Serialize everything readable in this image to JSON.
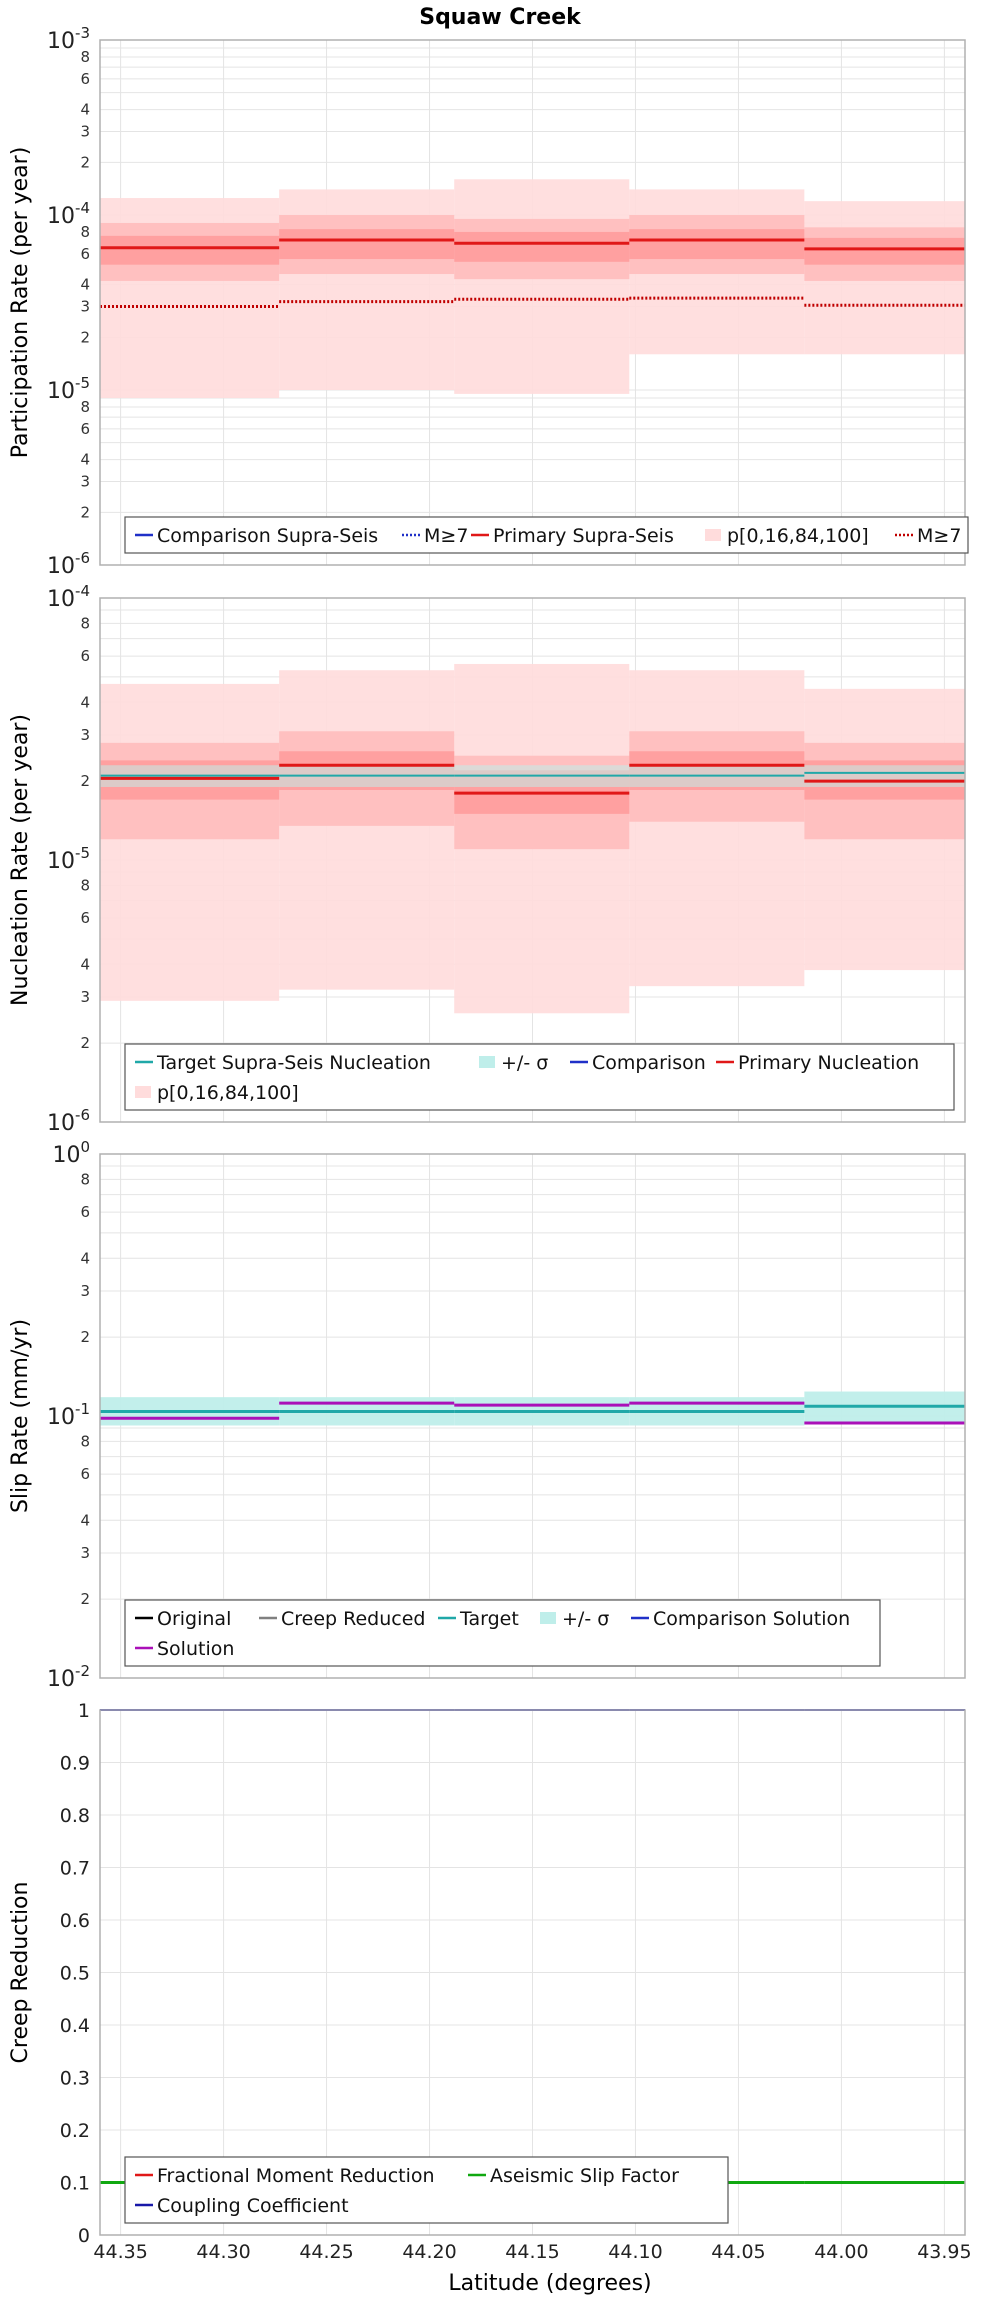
{
  "title": "Squaw Creek",
  "xlabel": "Latitude (degrees)",
  "x_ticks": [
    "44.35",
    "44.30",
    "44.25",
    "44.20",
    "44.15",
    "44.10",
    "44.05",
    "44.00",
    "43.95"
  ],
  "colors": {
    "comparison": "#2030c8",
    "primary": "#e01818",
    "band_outer": "#ffdcdc",
    "band_inner": "#ffbcbc",
    "band_core": "#ff9c9c",
    "target": "#20a8a8",
    "sigma": "#bfeeea",
    "solution": "#aa10b8",
    "original": "#000000",
    "creep": "#808080",
    "frac_moment": "#e01818",
    "aseismic": "#10a810",
    "coupling": "#1818a8",
    "grid": "#e4e4e4",
    "frame": "#b0b0b0"
  },
  "chart_data": [
    {
      "type": "line",
      "ylabel": "Participation Rate (per year)",
      "yscale": "log",
      "ylim": [
        1e-06,
        0.001
      ],
      "x_bins": [
        44.36,
        44.273,
        44.188,
        44.103,
        44.018,
        43.94
      ],
      "legend": [
        {
          "label": "Comparison Supra-Seis",
          "swatch": "line",
          "color": "#2030c8"
        },
        {
          "label": "M≥7",
          "swatch": "dotted",
          "color": "#2030c8"
        },
        {
          "label": "Primary Supra-Seis",
          "swatch": "line",
          "color": "#e01818"
        },
        {
          "label": "p[0,16,84,100]",
          "swatch": "band",
          "color": "#ffdcdc"
        },
        {
          "label": "M≥7",
          "swatch": "dotted",
          "color": "#c00000"
        }
      ],
      "bands": [
        {
          "lo": [
            9e-06,
            1e-05,
            9.5e-06,
            1.6e-05,
            1.6e-05
          ],
          "hi": [
            0.000125,
            0.00014,
            0.00016,
            0.00014,
            0.00012
          ]
        },
        {
          "lo": [
            4.2e-05,
            4.6e-05,
            4.3e-05,
            4.6e-05,
            4.2e-05
          ],
          "hi": [
            9e-05,
            0.0001,
            9.5e-05,
            0.0001,
            8.5e-05
          ]
        },
        {
          "lo": [
            5.2e-05,
            5.6e-05,
            5.4e-05,
            5.6e-05,
            5.2e-05
          ],
          "hi": [
            7.6e-05,
            8.3e-05,
            8e-05,
            8.3e-05,
            7.4e-05
          ]
        }
      ],
      "series": [
        {
          "name": "Primary Supra-Seis",
          "values": [
            6.5e-05,
            7.2e-05,
            6.9e-05,
            7.2e-05,
            6.4e-05
          ],
          "color": "#e01818",
          "style": "solid",
          "width": 3
        },
        {
          "name": "M≥7",
          "values": [
            3e-05,
            3.2e-05,
            3.3e-05,
            3.35e-05,
            3.05e-05
          ],
          "color": "#c00000",
          "style": "dotted",
          "width": 3
        }
      ]
    },
    {
      "type": "line",
      "ylabel": "Nucleation Rate (per year)",
      "yscale": "log",
      "ylim": [
        1e-06,
        0.0001
      ],
      "x_bins": [
        44.36,
        44.273,
        44.188,
        44.103,
        44.018,
        43.94
      ],
      "legend": [
        {
          "label": "Target Supra-Seis Nucleation",
          "swatch": "line",
          "color": "#20a8a8"
        },
        {
          "label": "+/- σ",
          "swatch": "band",
          "color": "#bfeeea"
        },
        {
          "label": "Comparison",
          "swatch": "line",
          "color": "#2030c8"
        },
        {
          "label": "Primary Nucleation",
          "swatch": "line",
          "color": "#e01818"
        },
        {
          "label": "p[0,16,84,100]",
          "swatch": "band",
          "color": "#ffdcdc"
        }
      ],
      "bands": [
        {
          "lo": [
            2.9e-06,
            3.2e-06,
            2.6e-06,
            3.3e-06,
            3.8e-06
          ],
          "hi": [
            4.7e-05,
            5.3e-05,
            5.6e-05,
            5.3e-05,
            4.5e-05
          ]
        },
        {
          "lo": [
            1.2e-05,
            1.35e-05,
            1.1e-05,
            1.4e-05,
            1.2e-05
          ],
          "hi": [
            2.8e-05,
            3.1e-05,
            2.5e-05,
            3.1e-05,
            2.8e-05
          ]
        },
        {
          "lo": [
            1.7e-05,
            1.85e-05,
            1.5e-05,
            1.85e-05,
            1.7e-05
          ],
          "hi": [
            2.4e-05,
            2.6e-05,
            2.2e-05,
            2.6e-05,
            2.4e-05
          ]
        }
      ],
      "sigma": {
        "lo": [
          1.9e-05,
          1.9e-05,
          1.9e-05,
          1.9e-05,
          1.9e-05
        ],
        "hi": [
          2.3e-05,
          2.3e-05,
          2.3e-05,
          2.3e-05,
          2.3e-05
        ]
      },
      "series": [
        {
          "name": "Target Supra-Seis Nucleation",
          "values": [
            2.1e-05,
            2.1e-05,
            2.1e-05,
            2.1e-05,
            2.15e-05
          ],
          "color": "#20a8a8",
          "style": "solid",
          "width": 2
        },
        {
          "name": "Primary Nucleation",
          "values": [
            2.05e-05,
            2.3e-05,
            1.8e-05,
            2.3e-05,
            2e-05
          ],
          "color": "#e01818",
          "style": "solid",
          "width": 3
        }
      ]
    },
    {
      "type": "line",
      "ylabel": "Slip Rate (mm/yr)",
      "yscale": "log",
      "ylim": [
        0.01,
        1
      ],
      "x_bins": [
        44.36,
        44.273,
        44.188,
        44.103,
        44.018,
        43.94
      ],
      "legend": [
        {
          "label": "Original",
          "swatch": "line",
          "color": "#000000"
        },
        {
          "label": "Creep Reduced",
          "swatch": "line",
          "color": "#808080"
        },
        {
          "label": "Target",
          "swatch": "line",
          "color": "#20a8a8"
        },
        {
          "label": "+/- σ",
          "swatch": "band",
          "color": "#bfeeea"
        },
        {
          "label": "Comparison Solution",
          "swatch": "line",
          "color": "#2030c8"
        },
        {
          "label": "Solution",
          "swatch": "line",
          "color": "#aa10b8"
        }
      ],
      "sigma": {
        "lo": [
          0.092,
          0.092,
          0.092,
          0.092,
          0.095
        ],
        "hi": [
          0.118,
          0.118,
          0.118,
          0.118,
          0.124
        ]
      },
      "series": [
        {
          "name": "Target",
          "values": [
            0.104,
            0.104,
            0.104,
            0.104,
            0.109
          ],
          "color": "#20a8a8",
          "style": "solid",
          "width": 3
        },
        {
          "name": "Solution",
          "values": [
            0.098,
            0.112,
            0.11,
            0.112,
            0.094
          ],
          "color": "#aa10b8",
          "style": "solid",
          "width": 3
        }
      ]
    },
    {
      "type": "line",
      "ylabel": "Creep Reduction",
      "yscale": "linear",
      "ylim": [
        0,
        1
      ],
      "y_ticks": [
        0,
        0.1,
        0.2,
        0.3,
        0.4,
        0.5,
        0.6,
        0.7,
        0.8,
        0.9,
        1
      ],
      "x_bins": [
        44.36,
        44.273,
        44.188,
        44.103,
        44.018,
        43.94
      ],
      "legend": [
        {
          "label": "Fractional Moment Reduction",
          "swatch": "line",
          "color": "#e01818"
        },
        {
          "label": "Aseismic Slip Factor",
          "swatch": "line",
          "color": "#10a810"
        },
        {
          "label": "Coupling Coefficient",
          "swatch": "line",
          "color": "#1818a8"
        }
      ],
      "series": [
        {
          "name": "Aseismic Slip Factor",
          "values": [
            0.1,
            0.1,
            0.1,
            0.1,
            0.1
          ],
          "color": "#10a810",
          "style": "solid",
          "width": 3
        },
        {
          "name": "Coupling Coefficient",
          "values": [
            1,
            1,
            1,
            1,
            1
          ],
          "color": "#1818a8",
          "style": "solid",
          "width": 2
        }
      ]
    }
  ]
}
